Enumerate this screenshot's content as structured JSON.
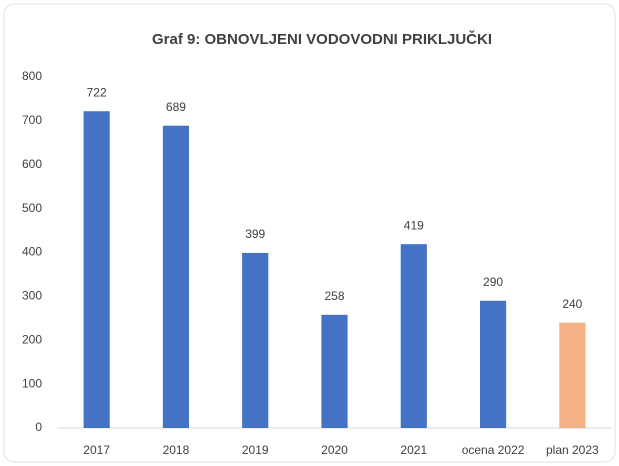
{
  "chart_data": {
    "type": "bar",
    "title": "Graf 9: OBNOVLJENI VODOVODNI PRIKLJUČKI",
    "categories": [
      "2017",
      "2018",
      "2019",
      "2020",
      "2021",
      "ocena 2022",
      "plan 2023"
    ],
    "values": [
      722,
      689,
      399,
      258,
      419,
      290,
      240
    ],
    "colors": [
      "#4472c4",
      "#4472c4",
      "#4472c4",
      "#4472c4",
      "#4472c4",
      "#4472c4",
      "#f4b183"
    ],
    "ylim": [
      0,
      800
    ],
    "yticks": [
      0,
      100,
      200,
      300,
      400,
      500,
      600,
      700,
      800
    ],
    "grid": false
  }
}
